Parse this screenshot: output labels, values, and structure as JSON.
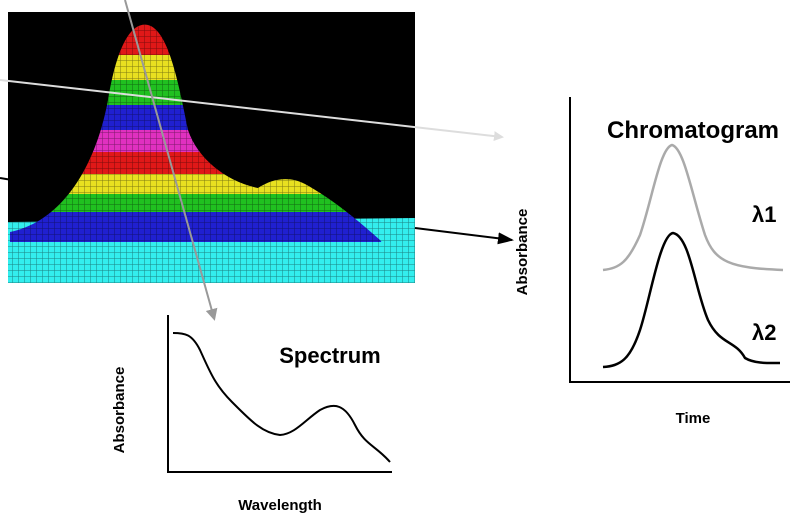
{
  "spectrum": {
    "title": "Spectrum",
    "y_label": "Absorbance",
    "x_label": "Wavelength"
  },
  "chromatogram": {
    "title": "Chromatogram",
    "y_label": "Absorbance",
    "x_label": "Time",
    "traces": [
      "λ1",
      "λ2"
    ]
  }
}
